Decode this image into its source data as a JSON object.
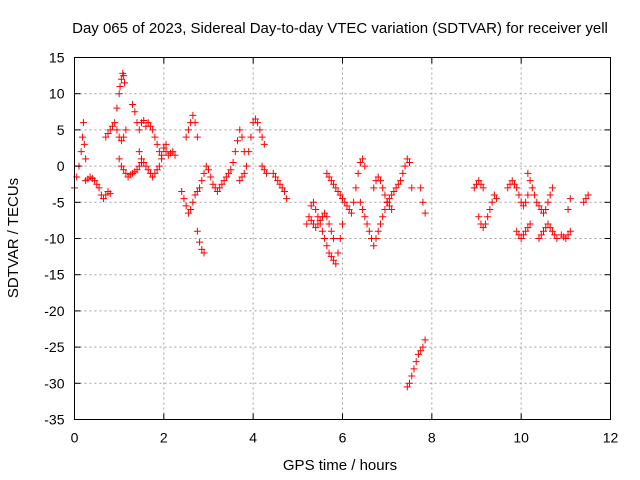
{
  "chart_data": {
    "type": "scatter",
    "title": "Day 065 of 2023, Sidereal Day-to-day VTEC variation (SDTVAR) for receiver yell",
    "xlabel": "GPS time / hours",
    "ylabel": "SDTVAR / TECUs",
    "xlim": [
      0,
      12
    ],
    "ylim": [
      -35,
      15
    ],
    "xticks": [
      0,
      2,
      4,
      6,
      8,
      10,
      12
    ],
    "yticks": [
      15,
      10,
      5,
      0,
      -5,
      -10,
      -15,
      -20,
      -25,
      -30,
      -35
    ],
    "grid": true,
    "marker": "plus",
    "color": "#ff0000",
    "series": [
      {
        "name": "seg01",
        "x": [
          0.0,
          0.05,
          0.1,
          0.15,
          0.18,
          0.2,
          0.22,
          0.25
        ],
        "y": [
          -3,
          -1.5,
          0,
          2,
          4,
          6,
          3,
          1
        ]
      },
      {
        "name": "seg02",
        "x": [
          0.25,
          0.3,
          0.35,
          0.4,
          0.45,
          0.5,
          0.55,
          0.6,
          0.65,
          0.7,
          0.75,
          0.8
        ],
        "y": [
          -2,
          -1.8,
          -1.5,
          -1.7,
          -2,
          -2.5,
          -3,
          -4,
          -4.5,
          -4,
          -3.5,
          -3.8
        ]
      },
      {
        "name": "seg03",
        "x": [
          0.7,
          0.75,
          0.8,
          0.85,
          0.9,
          0.95,
          1.0,
          1.05,
          1.1,
          1.15
        ],
        "y": [
          4,
          4.5,
          5,
          5.5,
          6,
          5,
          4,
          3.5,
          4,
          5
        ]
      },
      {
        "name": "seg04",
        "x": [
          0.95,
          1.0,
          1.02,
          1.05,
          1.08,
          1.1,
          1.12
        ],
        "y": [
          8,
          10,
          11,
          12,
          12.8,
          12.5,
          11.5
        ]
      },
      {
        "name": "seg05",
        "x": [
          1.0,
          1.05,
          1.1,
          1.15,
          1.2,
          1.25,
          1.3,
          1.35,
          1.4,
          1.45,
          1.5
        ],
        "y": [
          1,
          0,
          -0.5,
          -1,
          -1.5,
          -1.2,
          -1,
          -0.8,
          -0.5,
          0,
          0.5
        ]
      },
      {
        "name": "seg06",
        "x": [
          1.3,
          1.35,
          1.4,
          1.45,
          1.5,
          1.55,
          1.6,
          1.65,
          1.7,
          1.75,
          1.8,
          1.85,
          1.9,
          1.95,
          2.0,
          2.05
        ],
        "y": [
          8.5,
          7.5,
          6,
          5,
          6,
          6.3,
          5.5,
          6,
          5.5,
          5,
          4,
          3,
          2,
          1.5,
          2.5,
          3
        ]
      },
      {
        "name": "seg07",
        "x": [
          1.45,
          1.5,
          1.55,
          1.6,
          1.65,
          1.7,
          1.75,
          1.8,
          1.85,
          1.9,
          1.95
        ],
        "y": [
          2,
          1,
          0.5,
          0,
          -0.5,
          -1,
          -1.5,
          -1,
          -0.5,
          0,
          1
        ]
      },
      {
        "name": "seg08",
        "x": [
          2.0,
          2.05,
          2.1,
          2.15,
          2.2,
          2.25
        ],
        "y": [
          2.5,
          2,
          1.5,
          1.8,
          2,
          1.5
        ]
      },
      {
        "name": "seg09",
        "x": [
          2.4,
          2.45,
          2.5,
          2.55,
          2.6,
          2.65,
          2.7,
          2.75,
          2.8
        ],
        "y": [
          -3.5,
          -4.5,
          -5.5,
          -6.5,
          -6,
          -5,
          -4,
          -3.5,
          -3
        ]
      },
      {
        "name": "seg10",
        "x": [
          2.5,
          2.55,
          2.6,
          2.65,
          2.7,
          2.75
        ],
        "y": [
          4,
          5,
          6,
          7,
          6,
          4
        ]
      },
      {
        "name": "seg11",
        "x": [
          2.75,
          2.8,
          2.85,
          2.9
        ],
        "y": [
          -9,
          -10.5,
          -11.5,
          -12
        ]
      },
      {
        "name": "seg12",
        "x": [
          2.85,
          2.9,
          2.95,
          3.0,
          3.05,
          3.1,
          3.15,
          3.2,
          3.25,
          3.3,
          3.35,
          3.4,
          3.45,
          3.5,
          3.55,
          3.6,
          3.65,
          3.7,
          3.75,
          3.8
        ],
        "y": [
          -2,
          -1,
          0,
          -0.5,
          -1.5,
          -2.5,
          -3,
          -3.5,
          -3,
          -2.5,
          -2,
          -1.5,
          -1,
          -0.5,
          0.5,
          2,
          3.5,
          5,
          4,
          2
        ]
      },
      {
        "name": "seg13",
        "x": [
          3.7,
          3.75,
          3.8,
          3.85,
          3.9,
          3.95,
          4.0,
          4.05,
          4.1,
          4.15,
          4.2,
          4.25
        ],
        "y": [
          -2,
          -1.5,
          -1,
          0,
          2,
          4,
          6,
          6.5,
          6,
          5,
          4,
          3
        ]
      },
      {
        "name": "seg14",
        "x": [
          4.2,
          4.25,
          4.3
        ],
        "y": [
          0,
          -0.5,
          -1
        ]
      },
      {
        "name": "seg15",
        "x": [
          4.45,
          4.5,
          4.55,
          4.6,
          4.65,
          4.7,
          4.75
        ],
        "y": [
          -1,
          -1.5,
          -2,
          -2.5,
          -3,
          -3.5,
          -4.5
        ]
      },
      {
        "name": "seg16",
        "x": [
          5.2,
          5.25,
          5.3,
          5.35,
          5.4,
          5.45,
          5.5,
          5.55,
          5.6,
          5.65,
          5.7,
          5.75,
          5.8,
          5.85,
          5.9,
          5.95,
          6.0
        ],
        "y": [
          -8,
          -7,
          -5.5,
          -5,
          -6,
          -7,
          -8,
          -9,
          -10,
          -11,
          -12,
          -12.5,
          -13,
          -13.5,
          -12,
          -10,
          -8
        ]
      },
      {
        "name": "seg17",
        "x": [
          5.3,
          5.35,
          5.4,
          5.45,
          5.5,
          5.55,
          5.6,
          5.65,
          5.7,
          5.75,
          5.8
        ],
        "y": [
          -7.5,
          -8,
          -8.5,
          -8,
          -7.5,
          -7,
          -6.5,
          -7,
          -8,
          -9,
          -10
        ]
      },
      {
        "name": "seg18",
        "x": [
          5.65,
          5.7,
          5.75,
          5.8,
          5.85,
          5.9,
          5.95,
          6.0,
          6.05,
          6.1,
          6.15,
          6.2,
          6.25,
          6.3,
          6.35,
          6.4,
          6.45,
          6.5
        ],
        "y": [
          -1,
          -1.5,
          -2,
          -2.5,
          -3,
          -3.5,
          -4,
          -4.5,
          -5,
          -5.5,
          -6,
          -6.5,
          -5,
          -3,
          -1,
          0.5,
          1,
          0
        ]
      },
      {
        "name": "seg19",
        "x": [
          6.4,
          6.45,
          6.5,
          6.55,
          6.6,
          6.65,
          6.7,
          6.75,
          6.8,
          6.85,
          6.9,
          6.95,
          7.0
        ],
        "y": [
          -5,
          -6,
          -7,
          -8,
          -9,
          -10,
          -11,
          -10,
          -9,
          -8,
          -7,
          -6,
          -5
        ]
      },
      {
        "name": "seg20",
        "x": [
          6.7,
          6.75,
          6.8,
          6.85,
          6.9,
          6.95,
          7.0,
          7.05,
          7.1
        ],
        "y": [
          -3,
          -2,
          -1.5,
          -2,
          -3,
          -4,
          -5,
          -5.5,
          -6
        ]
      },
      {
        "name": "seg21",
        "x": [
          7.0,
          7.05,
          7.1,
          7.15,
          7.2,
          7.25,
          7.3,
          7.35,
          7.4,
          7.45,
          7.5,
          7.55
        ],
        "y": [
          -5,
          -4.5,
          -4,
          -3.5,
          -3,
          -2.5,
          -2,
          -1,
          0,
          1,
          0.5,
          -3
        ]
      },
      {
        "name": "seg22",
        "x": [
          7.45,
          7.5,
          7.55,
          7.6,
          7.65,
          7.7,
          7.75,
          7.8,
          7.85
        ],
        "y": [
          -30.5,
          -30,
          -29,
          -28,
          -27,
          -26,
          -25.5,
          -25,
          -24
        ]
      },
      {
        "name": "seg23",
        "x": [
          7.75,
          7.8,
          7.85
        ],
        "y": [
          -3,
          -5,
          -6.5
        ]
      },
      {
        "name": "seg24",
        "x": [
          8.95,
          9.0,
          9.05,
          9.1,
          9.15
        ],
        "y": [
          -3,
          -2.5,
          -2,
          -2.5,
          -3
        ]
      },
      {
        "name": "seg25",
        "x": [
          9.05,
          9.1,
          9.15,
          9.2,
          9.25,
          9.3,
          9.35,
          9.4,
          9.45
        ],
        "y": [
          -7,
          -8,
          -8.5,
          -8,
          -7,
          -6,
          -5,
          -4,
          -4.5
        ]
      },
      {
        "name": "seg26",
        "x": [
          9.7,
          9.75,
          9.8,
          9.85,
          9.9,
          9.95,
          10.0,
          10.05,
          10.1,
          10.15
        ],
        "y": [
          -3,
          -2.5,
          -2,
          -2.5,
          -3,
          -4,
          -5,
          -5.5,
          -5,
          -4
        ]
      },
      {
        "name": "seg27",
        "x": [
          9.9,
          9.95,
          10.0,
          10.05,
          10.1,
          10.15,
          10.2
        ],
        "y": [
          -9,
          -9.5,
          -10,
          -9.5,
          -9,
          -8.5,
          -8
        ]
      },
      {
        "name": "seg28",
        "x": [
          10.15,
          10.2,
          10.25,
          10.3,
          10.35,
          10.4,
          10.45,
          10.5,
          10.55,
          10.6,
          10.65,
          10.7
        ],
        "y": [
          -1,
          -2,
          -3,
          -4,
          -5,
          -5.5,
          -6,
          -6.5,
          -6,
          -5,
          -4,
          -3
        ]
      },
      {
        "name": "seg29",
        "x": [
          10.4,
          10.45,
          10.5,
          10.55,
          10.6,
          10.65,
          10.7,
          10.75,
          10.8
        ],
        "y": [
          -10,
          -9.5,
          -9,
          -8.5,
          -8,
          -8.5,
          -9,
          -9.5,
          -10
        ]
      },
      {
        "name": "seg30",
        "x": [
          10.9,
          10.95,
          11.0,
          11.05,
          11.1
        ],
        "y": [
          -9.5,
          -9.8,
          -10,
          -9.5,
          -9
        ]
      },
      {
        "name": "seg31",
        "x": [
          11.05,
          11.1
        ],
        "y": [
          -6,
          -4.5
        ]
      },
      {
        "name": "seg32",
        "x": [
          11.4,
          11.45,
          11.5
        ],
        "y": [
          -5,
          -4.5,
          -4
        ]
      }
    ]
  }
}
